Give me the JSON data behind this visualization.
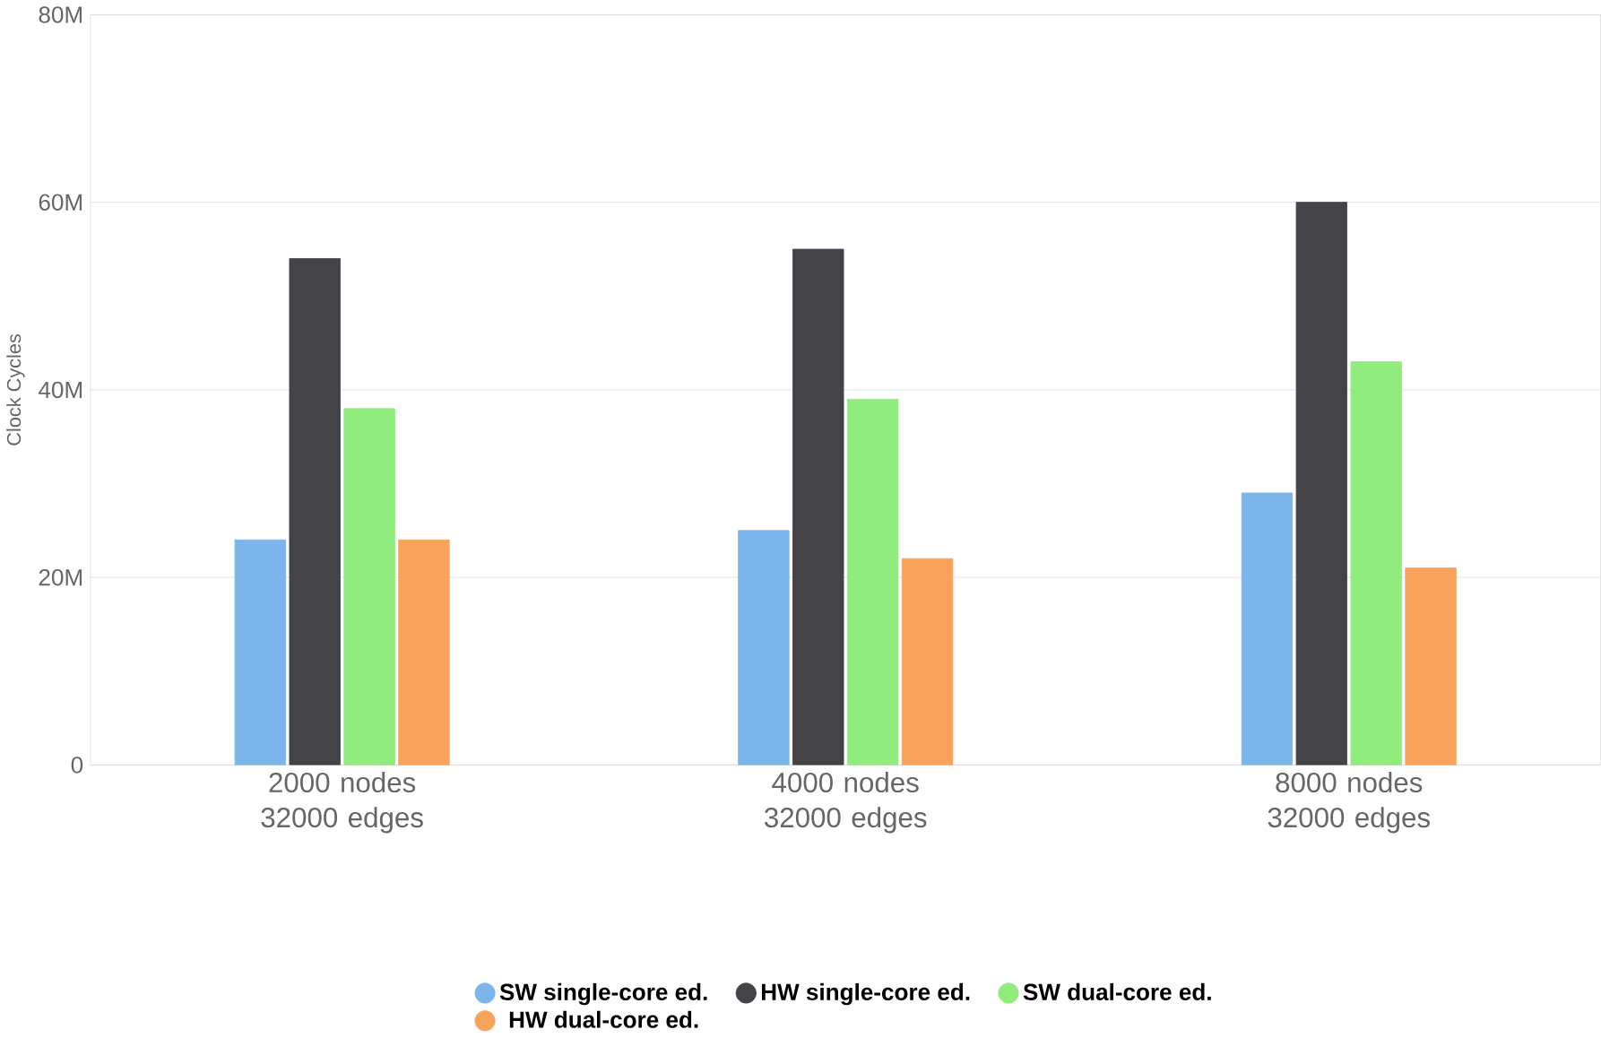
{
  "chart_data": {
    "type": "bar",
    "ylabel": "Clock Cycles",
    "categories": [
      "2000 nodes 32000 edges",
      "4000 nodes 32000 edges",
      "8000 nodes 32000 edges"
    ],
    "series": [
      {
        "name": "SW single-core ed.",
        "color": "#7cb5ec",
        "values": [
          24000000,
          25000000,
          29000000
        ]
      },
      {
        "name": "HW single-core ed.",
        "color": "#434348",
        "values": [
          54000000,
          55000000,
          60000000
        ]
      },
      {
        "name": "SW dual-core ed.",
        "color": "#90ed7d",
        "values": [
          38000000,
          39000000,
          43000000
        ]
      },
      {
        "name": "HW dual-core ed.",
        "color": "#f7a35c",
        "values": [
          24000000,
          22000000,
          21000000
        ]
      }
    ],
    "ylim": [
      0,
      80000000
    ],
    "yticks": [
      {
        "value": 0,
        "label": "0"
      },
      {
        "value": 20000000,
        "label": "20M"
      },
      {
        "value": 40000000,
        "label": "40M"
      },
      {
        "value": 60000000,
        "label": "60M"
      },
      {
        "value": 80000000,
        "label": "80M"
      }
    ],
    "grid": "y",
    "legend": "bottom"
  }
}
